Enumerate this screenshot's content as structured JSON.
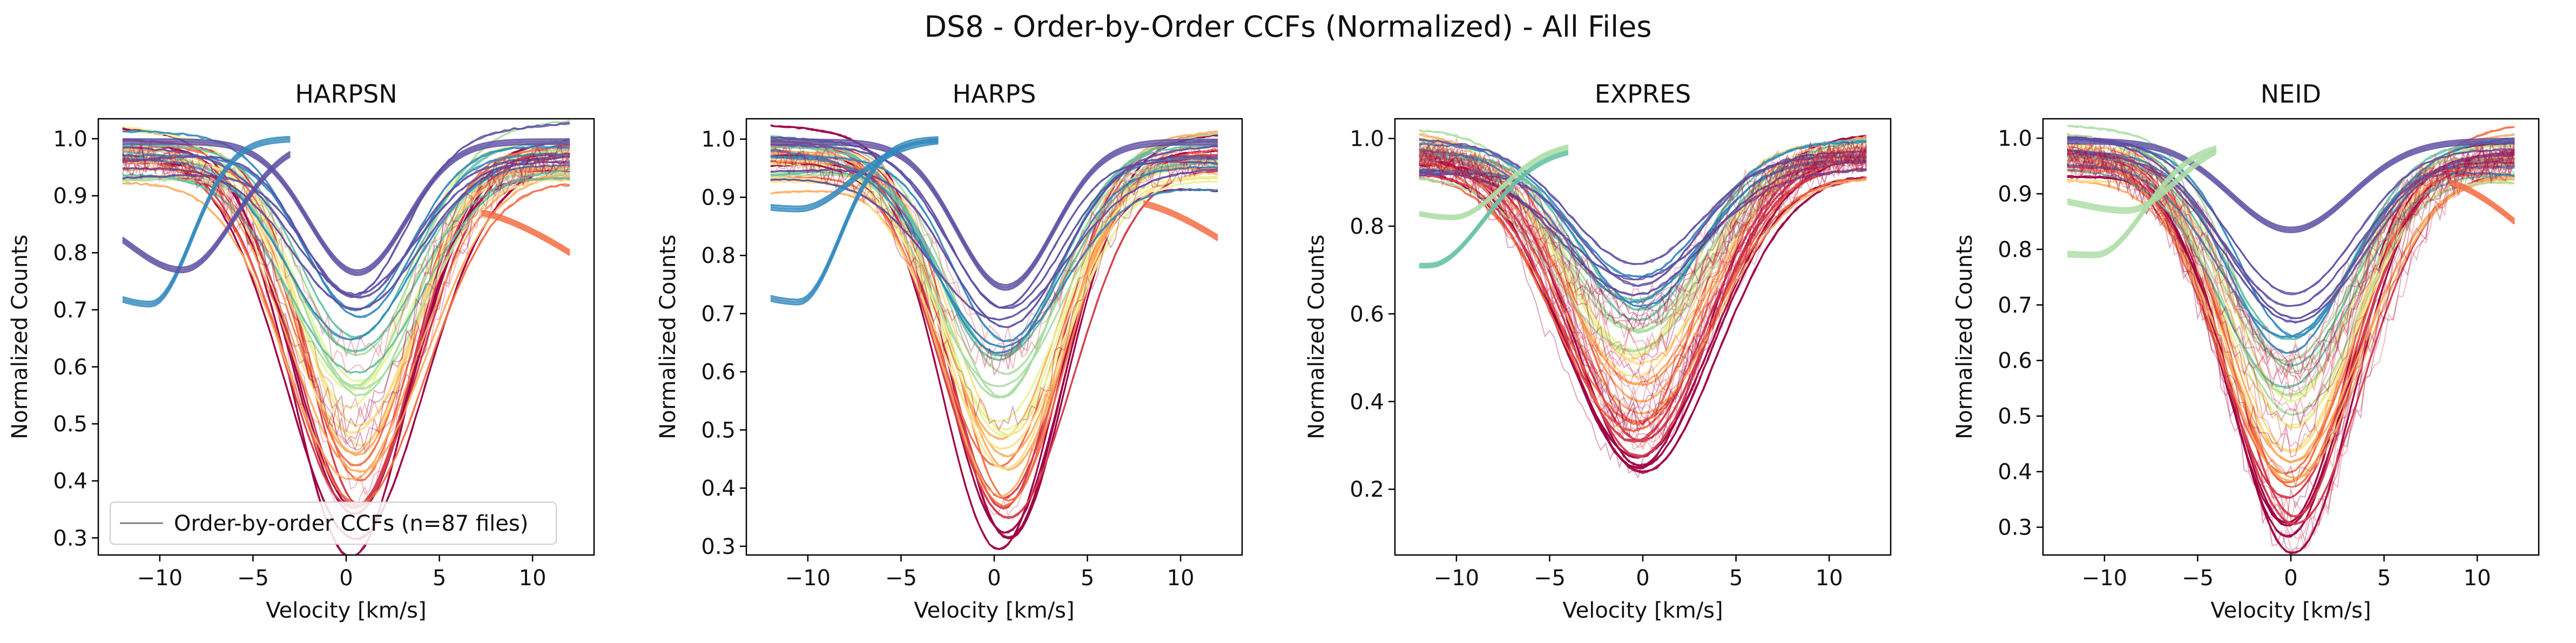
{
  "figure_title": "DS8 - Order-by-Order CCFs (Normalized) - All Files",
  "palette": [
    "#9e0142",
    "#d53e4f",
    "#f46d43",
    "#fdae61",
    "#fee08b",
    "#e6f598",
    "#abdda4",
    "#66c2a5",
    "#3288bd",
    "#5e4fa2"
  ],
  "chart_data": [
    {
      "type": "line",
      "title": "HARPSN",
      "xlabel": "Velocity [km/s]",
      "ylabel": "Normalized Counts",
      "xlim": [
        -13.3,
        13.3
      ],
      "ylim": [
        0.27,
        1.035
      ],
      "xticks": [
        -10,
        -5,
        0,
        5,
        10
      ],
      "xtick_labels": [
        "−10",
        "−5",
        "0",
        "5",
        "10"
      ],
      "yticks": [
        0.3,
        0.4,
        0.5,
        0.6,
        0.7,
        0.8,
        0.9,
        1.0
      ],
      "ytick_labels": [
        "0.3",
        "0.4",
        "0.5",
        "0.6",
        "0.7",
        "0.8",
        "0.9",
        "1.0"
      ],
      "x_range": [
        -12,
        12
      ],
      "legend": {
        "label": "Order-by-order CCFs (n=87 files)",
        "placement": "lower left"
      },
      "profile": {
        "center": 0.5,
        "width": 3.2,
        "depths_min": 0.23,
        "depths_max": 0.68,
        "n_orders": 34,
        "noise": 0.004,
        "red_fraction": 0.15
      },
      "special_curves": [
        {
          "color_index": 9,
          "type": "dip",
          "center": 0.6,
          "width": 2.6,
          "depth": 0.23
        },
        {
          "color_index": 8,
          "type": "trough",
          "center": -10.5,
          "min": 0.71,
          "start": 0.75,
          "end": 1.0,
          "width": 2.2,
          "stop": -3
        },
        {
          "color_index": 9,
          "type": "trough",
          "center": -8.8,
          "min": 0.77,
          "start": 0.88,
          "end": 1.0,
          "width": 2.8,
          "stop": -3
        },
        {
          "color_index": 2,
          "type": "late",
          "min_x": 7.2,
          "peak": 0.87,
          "end": 0.8
        }
      ]
    },
    {
      "type": "line",
      "title": "HARPS",
      "xlabel": "Velocity [km/s]",
      "ylabel": "Normalized Counts",
      "xlim": [
        -13.3,
        13.3
      ],
      "ylim": [
        0.285,
        1.035
      ],
      "xticks": [
        -10,
        -5,
        0,
        5,
        10
      ],
      "xtick_labels": [
        "−10",
        "−5",
        "0",
        "5",
        "10"
      ],
      "yticks": [
        0.3,
        0.4,
        0.5,
        0.6,
        0.7,
        0.8,
        0.9,
        1.0
      ],
      "ytick_labels": [
        "0.3",
        "0.4",
        "0.5",
        "0.6",
        "0.7",
        "0.8",
        "0.9",
        "1.0"
      ],
      "x_range": [
        -12,
        12
      ],
      "profile": {
        "center": 0.5,
        "width": 3.2,
        "depths_min": 0.25,
        "depths_max": 0.68,
        "n_orders": 34,
        "noise": 0.003,
        "red_fraction": 0.1
      },
      "special_curves": [
        {
          "color_index": 9,
          "type": "dip",
          "center": 0.6,
          "width": 2.6,
          "depth": 0.25
        },
        {
          "color_index": 8,
          "type": "trough",
          "center": -10.5,
          "min": 0.72,
          "start": 0.75,
          "end": 1.0,
          "width": 2.2,
          "stop": -3
        },
        {
          "color_index": 8,
          "type": "trough",
          "center": -10.5,
          "min": 0.88,
          "start": 0.9,
          "end": 1.0,
          "width": 2.8,
          "stop": -3
        },
        {
          "color_index": 2,
          "type": "late",
          "min_x": 7.8,
          "peak": 0.89,
          "end": 0.83
        }
      ]
    },
    {
      "type": "line",
      "title": "EXPRES",
      "xlabel": "Velocity [km/s]",
      "ylabel": "Normalized Counts",
      "xlim": [
        -13.3,
        13.3
      ],
      "ylim": [
        0.05,
        1.045
      ],
      "xticks": [
        -10,
        -5,
        0,
        5,
        10
      ],
      "xtick_labels": [
        "−10",
        "−5",
        "0",
        "5",
        "10"
      ],
      "yticks": [
        0.2,
        0.4,
        0.6,
        0.8,
        1.0
      ],
      "ytick_labels": [
        "0.2",
        "0.4",
        "0.6",
        "0.8",
        "1.0"
      ],
      "x_range": [
        -12,
        12
      ],
      "profile": {
        "center": -0.3,
        "width": 3.6,
        "depths_min": 0.25,
        "depths_max": 0.72,
        "n_orders": 34,
        "noise": 0.006,
        "red_fraction": 0.45
      },
      "special_curves": [
        {
          "color_index": 7,
          "type": "trough",
          "center": -11.5,
          "min": 0.71,
          "start": 0.72,
          "end": 0.98,
          "width": 3.0,
          "stop": -4
        },
        {
          "color_index": 6,
          "type": "trough",
          "center": -10.2,
          "min": 0.82,
          "start": 0.86,
          "end": 0.99,
          "width": 2.6,
          "stop": -4
        }
      ]
    },
    {
      "type": "line",
      "title": "NEID",
      "xlabel": "Velocity [km/s]",
      "ylabel": "Normalized Counts",
      "xlim": [
        -13.3,
        13.3
      ],
      "ylim": [
        0.25,
        1.035
      ],
      "xticks": [
        -10,
        -5,
        0,
        5,
        10
      ],
      "xtick_labels": [
        "−10",
        "−5",
        "0",
        "5",
        "10"
      ],
      "yticks": [
        0.3,
        0.4,
        0.5,
        0.6,
        0.7,
        0.8,
        0.9,
        1.0
      ],
      "ytick_labels": [
        "0.3",
        "0.4",
        "0.5",
        "0.6",
        "0.7",
        "0.8",
        "0.9",
        "1.0"
      ],
      "x_range": [
        -12,
        12
      ],
      "profile": {
        "center": 0.0,
        "width": 3.3,
        "depths_min": 0.27,
        "depths_max": 0.7,
        "n_orders": 34,
        "noise": 0.004,
        "red_fraction": 0.35
      },
      "special_curves": [
        {
          "color_index": 9,
          "type": "dip",
          "center": 0.0,
          "width": 3.2,
          "depth": 0.16
        },
        {
          "color_index": 6,
          "type": "trough",
          "center": -10.5,
          "min": 0.79,
          "start": 0.8,
          "end": 0.99,
          "width": 2.6,
          "stop": -4
        },
        {
          "color_index": 6,
          "type": "trough",
          "center": -8.8,
          "min": 0.87,
          "start": 0.9,
          "end": 1.0,
          "width": 2.6,
          "stop": -4
        },
        {
          "color_index": 2,
          "type": "late",
          "min_x": 8.5,
          "peak": 0.92,
          "end": 0.85
        }
      ]
    }
  ]
}
